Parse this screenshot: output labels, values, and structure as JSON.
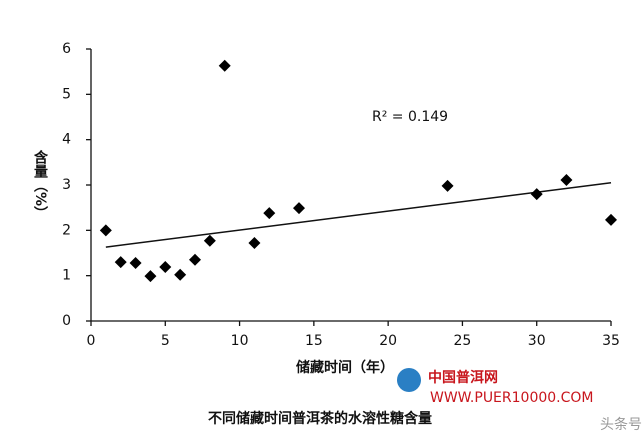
{
  "chart_data": {
    "type": "scatter",
    "x_label": "储藏时间（年）",
    "y_label": "含量（%）",
    "caption": "不同储藏时间普洱茶的水溶性糖含量",
    "annotation": "R² = 0.149",
    "series": [
      {
        "color": "#000000",
        "x": [
          1,
          2,
          3,
          4,
          5,
          6,
          7,
          8,
          9,
          11,
          12,
          14,
          24,
          30,
          32,
          35
        ],
        "values": [
          2.0,
          1.3,
          1.28,
          0.99,
          1.19,
          1.02,
          1.35,
          1.77,
          5.63,
          1.72,
          2.38,
          2.49,
          2.98,
          2.8,
          3.11,
          2.23
        ]
      }
    ],
    "trendline": {
      "x": [
        1,
        35
      ],
      "values": [
        1.63,
        3.05
      ]
    },
    "xlim": [
      0,
      35
    ],
    "xticks": [
      0,
      5,
      10,
      15,
      20,
      25,
      30,
      35
    ],
    "ylim": [
      0,
      6
    ],
    "yticks": [
      0,
      1,
      2,
      3,
      4,
      5,
      6
    ],
    "grid": false
  },
  "watermark": {
    "name": "中国普洱网",
    "url": "WWW.PUER10000.COM",
    "corner": "头条号 /"
  }
}
